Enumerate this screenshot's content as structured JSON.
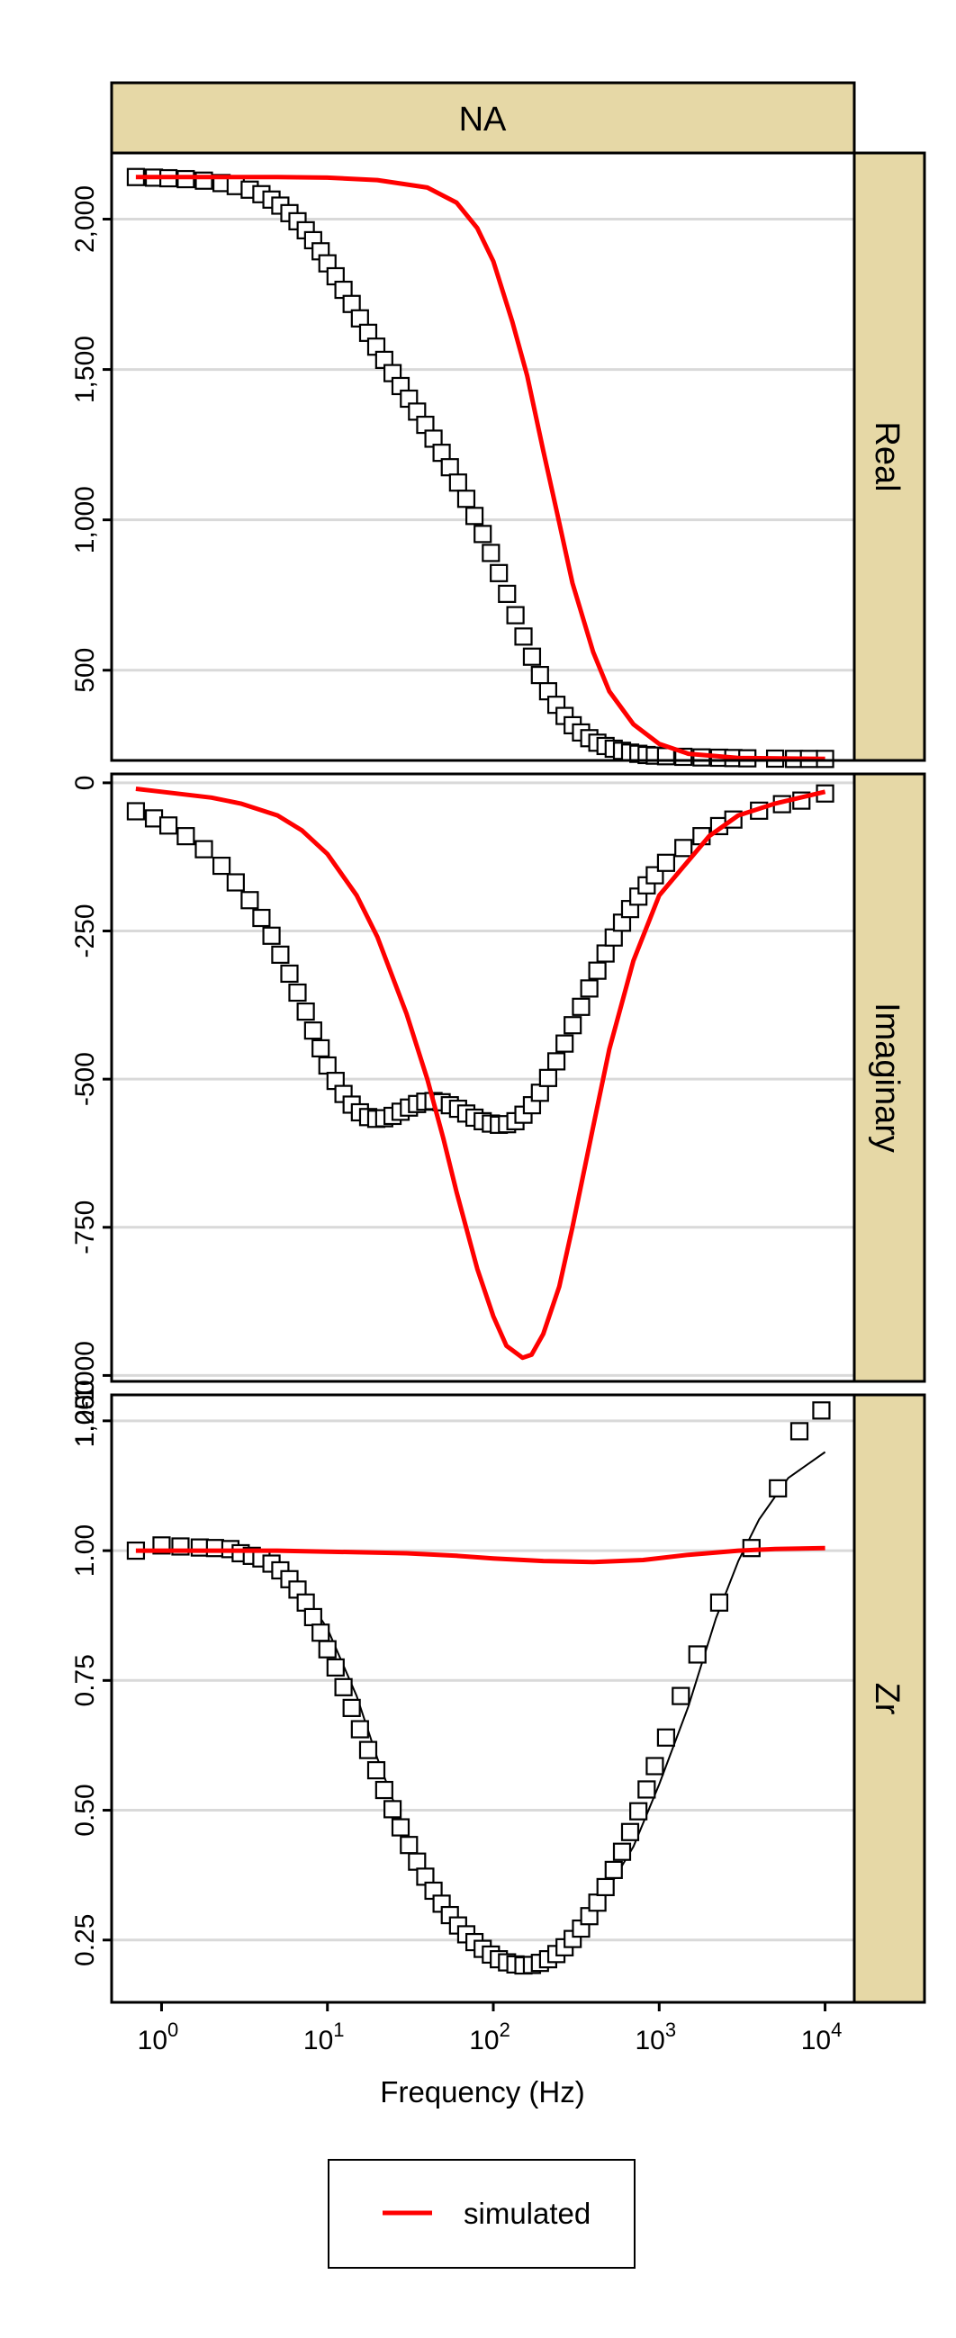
{
  "chart_data": {
    "type": "scatter",
    "strip_title": "NA",
    "xlabel": "Frequency (Hz)",
    "x_scale": "log10",
    "xlim": [
      0.5,
      15000
    ],
    "x_ticks": [
      1,
      10,
      100,
      1000,
      10000
    ],
    "x_tick_labels": [
      {
        "base": "10",
        "exp": "0"
      },
      {
        "base": "10",
        "exp": "1"
      },
      {
        "base": "10",
        "exp": "2"
      },
      {
        "base": "10",
        "exp": "3"
      },
      {
        "base": "10",
        "exp": "4"
      }
    ],
    "legend": {
      "position": "bottom",
      "entries": [
        {
          "label": "simulated",
          "color": "#ff0000"
        }
      ]
    },
    "panels": [
      {
        "name": "Real",
        "ylim": [
          200,
          2220
        ],
        "y_ticks": [
          500,
          1000,
          1500,
          2000
        ],
        "y_tick_labels": [
          "500",
          "1,000",
          "1,500",
          "2,000"
        ],
        "simulated": [
          [
            0.7,
            2140
          ],
          [
            2,
            2140
          ],
          [
            5,
            2140
          ],
          [
            10,
            2138
          ],
          [
            20,
            2130
          ],
          [
            40,
            2105
          ],
          [
            60,
            2055
          ],
          [
            80,
            1970
          ],
          [
            100,
            1860
          ],
          [
            130,
            1660
          ],
          [
            160,
            1480
          ],
          [
            200,
            1230
          ],
          [
            250,
            990
          ],
          [
            300,
            790
          ],
          [
            400,
            560
          ],
          [
            500,
            430
          ],
          [
            700,
            320
          ],
          [
            1000,
            255
          ],
          [
            1500,
            222
          ],
          [
            3000,
            208
          ],
          [
            10000,
            205
          ]
        ],
        "measured": [
          [
            0.7,
            2140
          ],
          [
            0.9,
            2138
          ],
          [
            1.1,
            2136
          ],
          [
            1.4,
            2133
          ],
          [
            1.8,
            2128
          ],
          [
            2.3,
            2120
          ],
          [
            2.8,
            2110
          ],
          [
            3.4,
            2098
          ],
          [
            4,
            2083
          ],
          [
            4.6,
            2065
          ],
          [
            5.2,
            2045
          ],
          [
            5.9,
            2020
          ],
          [
            6.6,
            1993
          ],
          [
            7.4,
            1963
          ],
          [
            8.2,
            1930
          ],
          [
            9.1,
            1893
          ],
          [
            10,
            1853
          ],
          [
            11.2,
            1810
          ],
          [
            12.5,
            1765
          ],
          [
            14,
            1718
          ],
          [
            15.7,
            1670
          ],
          [
            17.6,
            1622
          ],
          [
            19.7,
            1576
          ],
          [
            22,
            1532
          ],
          [
            24.7,
            1488
          ],
          [
            27.6,
            1445
          ],
          [
            31,
            1403
          ],
          [
            34.7,
            1360
          ],
          [
            38.9,
            1316
          ],
          [
            43.6,
            1270
          ],
          [
            48.8,
            1223
          ],
          [
            54.7,
            1175
          ],
          [
            61.3,
            1124
          ],
          [
            68.7,
            1070
          ],
          [
            77,
            1013
          ],
          [
            86.3,
            953
          ],
          [
            96.7,
            890
          ],
          [
            108,
            823
          ],
          [
            121,
            754
          ],
          [
            136,
            683
          ],
          [
            152,
            612
          ],
          [
            171,
            545
          ],
          [
            191,
            484
          ],
          [
            214,
            430
          ],
          [
            240,
            385
          ],
          [
            269,
            348
          ],
          [
            301,
            317
          ],
          [
            338,
            293
          ],
          [
            379,
            274
          ],
          [
            424,
            259
          ],
          [
            475,
            248
          ],
          [
            532,
            239
          ],
          [
            597,
            232
          ],
          [
            668,
            226
          ],
          [
            749,
            222
          ],
          [
            840,
            218
          ],
          [
            941,
            216
          ],
          [
            1100,
            214
          ],
          [
            1400,
            212
          ],
          [
            1800,
            210
          ],
          [
            2300,
            209
          ],
          [
            2800,
            208
          ],
          [
            3400,
            207
          ],
          [
            5000,
            206
          ],
          [
            6500,
            205
          ],
          [
            8000,
            205
          ],
          [
            10000,
            205
          ]
        ]
      },
      {
        "name": "Imaginary",
        "ylim": [
          -1010,
          15
        ],
        "y_ticks": [
          0,
          -250,
          -500,
          -750,
          -1000
        ],
        "y_tick_labels": [
          "0",
          "-250",
          "-500",
          "-750",
          "-1000"
        ],
        "simulated": [
          [
            0.7,
            -10
          ],
          [
            1,
            -15
          ],
          [
            2,
            -25
          ],
          [
            3,
            -35
          ],
          [
            5,
            -55
          ],
          [
            7,
            -80
          ],
          [
            10,
            -120
          ],
          [
            15,
            -190
          ],
          [
            20,
            -260
          ],
          [
            30,
            -390
          ],
          [
            40,
            -500
          ],
          [
            50,
            -600
          ],
          [
            60,
            -690
          ],
          [
            80,
            -820
          ],
          [
            100,
            -900
          ],
          [
            120,
            -950
          ],
          [
            150,
            -970
          ],
          [
            170,
            -965
          ],
          [
            200,
            -930
          ],
          [
            250,
            -850
          ],
          [
            300,
            -750
          ],
          [
            400,
            -580
          ],
          [
            500,
            -450
          ],
          [
            700,
            -300
          ],
          [
            1000,
            -190
          ],
          [
            2000,
            -90
          ],
          [
            3000,
            -55
          ],
          [
            5000,
            -35
          ],
          [
            10000,
            -15
          ]
        ],
        "measured": [
          [
            0.7,
            -48
          ],
          [
            0.9,
            -60
          ],
          [
            1.1,
            -72
          ],
          [
            1.4,
            -90
          ],
          [
            1.8,
            -112
          ],
          [
            2.3,
            -140
          ],
          [
            2.8,
            -168
          ],
          [
            3.4,
            -198
          ],
          [
            4,
            -228
          ],
          [
            4.6,
            -258
          ],
          [
            5.2,
            -290
          ],
          [
            5.9,
            -322
          ],
          [
            6.6,
            -354
          ],
          [
            7.4,
            -386
          ],
          [
            8.2,
            -418
          ],
          [
            9.1,
            -448
          ],
          [
            10,
            -477
          ],
          [
            11.2,
            -503
          ],
          [
            12.5,
            -525
          ],
          [
            14,
            -543
          ],
          [
            15.7,
            -556
          ],
          [
            17.6,
            -564
          ],
          [
            19.7,
            -567
          ],
          [
            22,
            -566
          ],
          [
            24.7,
            -562
          ],
          [
            27.6,
            -555
          ],
          [
            31,
            -548
          ],
          [
            34.7,
            -542
          ],
          [
            38.9,
            -538
          ],
          [
            43.6,
            -537
          ],
          [
            48.8,
            -539
          ],
          [
            54.7,
            -544
          ],
          [
            61.3,
            -550
          ],
          [
            68.7,
            -558
          ],
          [
            77,
            -565
          ],
          [
            86.3,
            -571
          ],
          [
            96.7,
            -575
          ],
          [
            108,
            -577
          ],
          [
            121,
            -576
          ],
          [
            136,
            -571
          ],
          [
            152,
            -560
          ],
          [
            171,
            -544
          ],
          [
            191,
            -523
          ],
          [
            214,
            -498
          ],
          [
            240,
            -470
          ],
          [
            269,
            -440
          ],
          [
            301,
            -409
          ],
          [
            338,
            -378
          ],
          [
            379,
            -347
          ],
          [
            424,
            -317
          ],
          [
            475,
            -288
          ],
          [
            532,
            -261
          ],
          [
            597,
            -236
          ],
          [
            668,
            -213
          ],
          [
            749,
            -192
          ],
          [
            840,
            -173
          ],
          [
            941,
            -156
          ],
          [
            1100,
            -135
          ],
          [
            1400,
            -110
          ],
          [
            1800,
            -90
          ],
          [
            2300,
            -73
          ],
          [
            2800,
            -62
          ],
          [
            4000,
            -47
          ],
          [
            5500,
            -36
          ],
          [
            7200,
            -30
          ],
          [
            10000,
            -18
          ]
        ]
      },
      {
        "name": "Zr",
        "ylim": [
          0.13,
          1.3
        ],
        "y_ticks": [
          0.25,
          0.5,
          0.75,
          1.0,
          1.25
        ],
        "y_tick_labels": [
          "0.25",
          "0.50",
          "0.75",
          "1.00",
          "1.25"
        ],
        "extra_tick_labels": [
          "1,000"
        ],
        "simulated": [
          [
            0.7,
            1.0
          ],
          [
            5,
            1.0
          ],
          [
            10,
            0.998
          ],
          [
            30,
            0.995
          ],
          [
            60,
            0.99
          ],
          [
            100,
            0.985
          ],
          [
            200,
            0.98
          ],
          [
            400,
            0.978
          ],
          [
            800,
            0.982
          ],
          [
            1500,
            0.992
          ],
          [
            3000,
            1.0
          ],
          [
            5000,
            1.003
          ],
          [
            10000,
            1.005
          ]
        ],
        "fit": [
          [
            0.7,
            1.0
          ],
          [
            2,
            0.998
          ],
          [
            4,
            0.985
          ],
          [
            6,
            0.955
          ],
          [
            10,
            0.85
          ],
          [
            15,
            0.72
          ],
          [
            20,
            0.6
          ],
          [
            30,
            0.45
          ],
          [
            50,
            0.32
          ],
          [
            80,
            0.24
          ],
          [
            120,
            0.205
          ],
          [
            160,
            0.195
          ],
          [
            250,
            0.22
          ],
          [
            400,
            0.3
          ],
          [
            700,
            0.43
          ],
          [
            1000,
            0.55
          ],
          [
            1500,
            0.7
          ],
          [
            2200,
            0.87
          ],
          [
            3000,
            0.98
          ],
          [
            4000,
            1.06
          ],
          [
            6000,
            1.14
          ],
          [
            10000,
            1.19
          ]
        ],
        "measured": [
          [
            0.7,
            1.0
          ],
          [
            1,
            1.01
          ],
          [
            1.3,
            1.008
          ],
          [
            1.7,
            1.006
          ],
          [
            2.1,
            1.005
          ],
          [
            2.6,
            1.003
          ],
          [
            3,
            0.995
          ],
          [
            3.5,
            0.99
          ],
          [
            4,
            0.985
          ],
          [
            4.6,
            0.975
          ],
          [
            5.2,
            0.962
          ],
          [
            5.9,
            0.945
          ],
          [
            6.6,
            0.925
          ],
          [
            7.4,
            0.9
          ],
          [
            8.2,
            0.872
          ],
          [
            9.1,
            0.842
          ],
          [
            10,
            0.81
          ],
          [
            11.2,
            0.775
          ],
          [
            12.5,
            0.737
          ],
          [
            14,
            0.697
          ],
          [
            15.7,
            0.656
          ],
          [
            17.6,
            0.616
          ],
          [
            19.7,
            0.577
          ],
          [
            22,
            0.539
          ],
          [
            24.7,
            0.502
          ],
          [
            27.6,
            0.467
          ],
          [
            31,
            0.433
          ],
          [
            34.7,
            0.401
          ],
          [
            38.9,
            0.372
          ],
          [
            43.6,
            0.345
          ],
          [
            48.8,
            0.32
          ],
          [
            54.7,
            0.298
          ],
          [
            61.3,
            0.278
          ],
          [
            68.7,
            0.261
          ],
          [
            77,
            0.246
          ],
          [
            86.3,
            0.233
          ],
          [
            96.7,
            0.222
          ],
          [
            108,
            0.213
          ],
          [
            121,
            0.207
          ],
          [
            136,
            0.203
          ],
          [
            152,
            0.201
          ],
          [
            171,
            0.202
          ],
          [
            191,
            0.206
          ],
          [
            214,
            0.213
          ],
          [
            240,
            0.223
          ],
          [
            269,
            0.236
          ],
          [
            301,
            0.252
          ],
          [
            338,
            0.272
          ],
          [
            379,
            0.296
          ],
          [
            424,
            0.322
          ],
          [
            475,
            0.352
          ],
          [
            532,
            0.385
          ],
          [
            597,
            0.42
          ],
          [
            668,
            0.458
          ],
          [
            749,
            0.498
          ],
          [
            840,
            0.54
          ],
          [
            941,
            0.585
          ],
          [
            1100,
            0.64
          ],
          [
            1350,
            0.72
          ],
          [
            1700,
            0.8
          ],
          [
            2300,
            0.9
          ],
          [
            3600,
            1.005
          ],
          [
            5200,
            1.12
          ],
          [
            7000,
            1.23
          ],
          [
            9500,
            1.27
          ]
        ]
      }
    ]
  }
}
